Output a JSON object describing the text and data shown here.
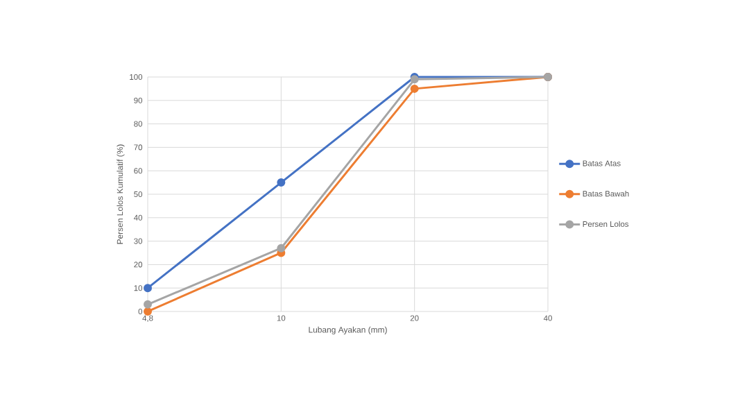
{
  "chart_data": {
    "type": "line",
    "xlabel": "Lubang Ayakan (mm)",
    "ylabel": "Persen Lolos Kumulatif (%)",
    "categories": [
      "4,8",
      "10",
      "20",
      "40"
    ],
    "series": [
      {
        "name": "Batas Atas",
        "color": "#4472c4",
        "values": [
          10,
          55,
          100,
          100
        ]
      },
      {
        "name": "Batas Bawah",
        "color": "#ed7d31",
        "values": [
          0,
          25,
          95,
          100
        ]
      },
      {
        "name": "Persen Lolos",
        "color": "#a5a5a5",
        "values": [
          3,
          27,
          99,
          100
        ]
      }
    ],
    "ylim": [
      0,
      100
    ],
    "yticks": [
      0,
      10,
      20,
      30,
      40,
      50,
      60,
      70,
      80,
      90,
      100
    ],
    "grid": true,
    "legend": "right",
    "marker": "circle",
    "line_style": "solid"
  }
}
